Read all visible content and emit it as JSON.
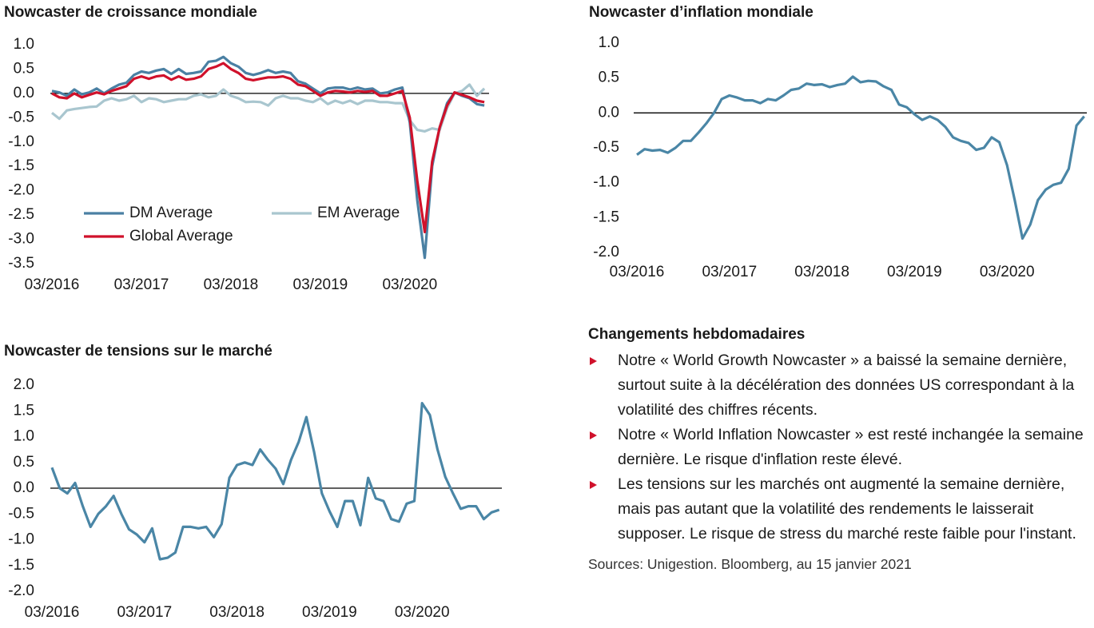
{
  "chart_data": [
    {
      "type": "line",
      "title": "Nowcaster de croissance mondiale",
      "categories": [
        "03/2016",
        null,
        null,
        null,
        null,
        null,
        null,
        null,
        null,
        null,
        null,
        null,
        "03/2017",
        null,
        null,
        null,
        null,
        null,
        null,
        null,
        null,
        null,
        null,
        null,
        "03/2018",
        null,
        null,
        null,
        null,
        null,
        null,
        null,
        null,
        null,
        null,
        null,
        "03/2019",
        null,
        null,
        null,
        null,
        null,
        null,
        null,
        null,
        null,
        null,
        null,
        "03/2020",
        null,
        null,
        null,
        null,
        null,
        null,
        null,
        null,
        null,
        null
      ],
      "ylim": [
        -3.5,
        1.0
      ],
      "yticks": [
        {
          "value": 1,
          "label": "1.0"
        },
        0.5,
        {
          "value": 0,
          "label": "0.0"
        },
        -0.5,
        {
          "value": -1,
          "label": "-1.0"
        },
        -1.5,
        {
          "value": -2,
          "label": "-2.0"
        },
        -2.5,
        {
          "value": -3,
          "label": "-3.0"
        },
        -3.5
      ],
      "legend": "lower left",
      "series": [
        {
          "name": "DM Average",
          "color": "#4a80a3",
          "values": [
            0.05,
            0.02,
            -0.05,
            0.08,
            -0.02,
            0.02,
            0.1,
            0.0,
            0.1,
            0.18,
            0.22,
            0.38,
            0.45,
            0.42,
            0.47,
            0.5,
            0.4,
            0.5,
            0.4,
            0.42,
            0.45,
            0.65,
            0.67,
            0.75,
            0.62,
            0.55,
            0.42,
            0.38,
            0.42,
            0.48,
            0.42,
            0.45,
            0.42,
            0.25,
            0.2,
            0.1,
            0.0,
            0.1,
            0.12,
            0.12,
            0.08,
            0.12,
            0.08,
            0.1,
            0.0,
            0.02,
            0.08,
            0.12,
            -0.6,
            -2.2,
            -3.38,
            -1.5,
            -0.7,
            -0.2,
            0.02,
            -0.05,
            -0.1,
            -0.22,
            -0.25
          ]
        },
        {
          "name": "EM Average",
          "color": "#a9c6cf",
          "values": [
            -0.4,
            -0.52,
            -0.35,
            -0.32,
            -0.3,
            -0.28,
            -0.27,
            -0.15,
            -0.1,
            -0.15,
            -0.12,
            -0.05,
            -0.18,
            -0.1,
            -0.12,
            -0.18,
            -0.15,
            -0.12,
            -0.12,
            -0.05,
            -0.02,
            -0.08,
            -0.05,
            0.08,
            -0.05,
            -0.1,
            -0.18,
            -0.17,
            -0.18,
            -0.25,
            -0.1,
            -0.05,
            -0.1,
            -0.1,
            -0.15,
            -0.18,
            -0.1,
            -0.22,
            -0.15,
            -0.2,
            -0.15,
            -0.22,
            -0.15,
            -0.15,
            -0.18,
            -0.18,
            -0.2,
            -0.2,
            -0.55,
            -0.75,
            -0.78,
            -0.72,
            -0.75,
            -0.3,
            0.0,
            0.05,
            0.18,
            -0.05,
            0.1
          ]
        },
        {
          "name": "Global Average",
          "color": "#d0112b",
          "values": [
            0.0,
            -0.08,
            -0.1,
            0.0,
            -0.08,
            -0.03,
            0.02,
            -0.02,
            0.05,
            0.1,
            0.15,
            0.3,
            0.35,
            0.3,
            0.35,
            0.37,
            0.28,
            0.35,
            0.28,
            0.3,
            0.35,
            0.5,
            0.55,
            0.62,
            0.5,
            0.42,
            0.3,
            0.27,
            0.3,
            0.33,
            0.33,
            0.35,
            0.3,
            0.18,
            0.15,
            0.05,
            -0.05,
            0.02,
            0.05,
            0.04,
            0.02,
            0.05,
            0.03,
            0.05,
            -0.05,
            -0.05,
            0.0,
            0.05,
            -0.5,
            -1.8,
            -2.85,
            -1.4,
            -0.7,
            -0.25,
            0.02,
            -0.03,
            -0.08,
            -0.15,
            -0.18
          ]
        }
      ]
    },
    {
      "type": "line",
      "title": "Nowcaster d’inflation mondiale",
      "categories": [
        "03/2016",
        null,
        null,
        null,
        null,
        null,
        null,
        null,
        null,
        null,
        null,
        null,
        "03/2017",
        null,
        null,
        null,
        null,
        null,
        null,
        null,
        null,
        null,
        null,
        null,
        "03/2018",
        null,
        null,
        null,
        null,
        null,
        null,
        null,
        null,
        null,
        null,
        null,
        "03/2019",
        null,
        null,
        null,
        null,
        null,
        null,
        null,
        null,
        null,
        null,
        null,
        "03/2020",
        null,
        null,
        null,
        null,
        null,
        null,
        null,
        null,
        null,
        null
      ],
      "ylim": [
        -2.0,
        1.0
      ],
      "yticks": [
        {
          "value": 1,
          "label": "1.0"
        },
        0.5,
        {
          "value": 0,
          "label": "0.0"
        },
        -0.5,
        {
          "value": -1,
          "label": "-1.0"
        },
        -1.5,
        {
          "value": -2,
          "label": "-2.0"
        }
      ],
      "color": "#4a86a6",
      "values": [
        -0.6,
        -0.52,
        -0.54,
        -0.53,
        -0.57,
        -0.5,
        -0.4,
        -0.4,
        -0.28,
        -0.15,
        0.0,
        0.2,
        0.25,
        0.22,
        0.18,
        0.18,
        0.14,
        0.2,
        0.18,
        0.25,
        0.33,
        0.35,
        0.42,
        0.4,
        0.41,
        0.37,
        0.4,
        0.42,
        0.52,
        0.44,
        0.46,
        0.45,
        0.38,
        0.33,
        0.12,
        0.08,
        -0.02,
        -0.1,
        -0.05,
        -0.1,
        -0.2,
        -0.35,
        -0.4,
        -0.43,
        -0.53,
        -0.5,
        -0.35,
        -0.42,
        -0.75,
        -1.25,
        -1.8,
        -1.6,
        -1.25,
        -1.1,
        -1.03,
        -1.0,
        -0.8,
        -0.18,
        -0.05
      ]
    },
    {
      "type": "line",
      "title": "Nowcaster de tensions sur le marché",
      "categories": [
        "03/2016",
        null,
        null,
        null,
        null,
        null,
        null,
        null,
        null,
        null,
        null,
        null,
        "03/2017",
        null,
        null,
        null,
        null,
        null,
        null,
        null,
        null,
        null,
        null,
        null,
        "03/2018",
        null,
        null,
        null,
        null,
        null,
        null,
        null,
        null,
        null,
        null,
        null,
        "03/2019",
        null,
        null,
        null,
        null,
        null,
        null,
        null,
        null,
        null,
        null,
        null,
        "03/2020",
        null,
        null,
        null,
        null,
        null,
        null,
        null,
        null,
        null,
        null
      ],
      "ylim": [
        -2.0,
        2.0
      ],
      "yticks": [
        {
          "value": 2,
          "label": "2.0"
        },
        1.5,
        {
          "value": 1,
          "label": "1.0"
        },
        0.5,
        {
          "value": 0,
          "label": "0.0"
        },
        -0.5,
        {
          "value": -1,
          "label": "-1.0"
        },
        -1.5,
        {
          "value": -2,
          "label": "-2.0"
        }
      ],
      "color": "#4a86a6",
      "values": [
        0.4,
        0.0,
        -0.1,
        0.1,
        -0.35,
        -0.75,
        -0.5,
        -0.35,
        -0.15,
        -0.5,
        -0.8,
        -0.9,
        -1.05,
        -0.78,
        -1.38,
        -1.35,
        -1.25,
        -0.75,
        -0.75,
        -0.78,
        -0.75,
        -0.95,
        -0.7,
        0.2,
        0.45,
        0.5,
        0.45,
        0.75,
        0.55,
        0.38,
        0.08,
        0.55,
        0.9,
        1.38,
        0.7,
        -0.1,
        -0.45,
        -0.75,
        -0.25,
        -0.25,
        -0.72,
        0.2,
        -0.2,
        -0.25,
        -0.6,
        -0.65,
        -0.3,
        -0.25,
        1.65,
        1.42,
        0.75,
        0.22,
        -0.1,
        -0.4,
        -0.35,
        -0.35,
        -0.6,
        -0.47,
        -0.42
      ]
    }
  ],
  "notes": {
    "title": "Changements hebdomadaires",
    "items": [
      "Notre « World Growth Nowcaster » a baissé la semaine dernière, surtout suite à la décélération des données US correspondant à la volatilité des chiffres récents.",
      "Notre « World Inflation Nowcaster » est resté inchangée la semaine dernière. Le risque d'inflation reste élevé.",
      "Les tensions sur les marchés ont augmenté la semaine dernière, mais pas autant que la volatilité des rendements le laisserait supposer. Le risque de stress du marché reste faible pour l'instant."
    ],
    "source": "Sources: Unigestion. Bloomberg, au 15 janvier 2021"
  }
}
